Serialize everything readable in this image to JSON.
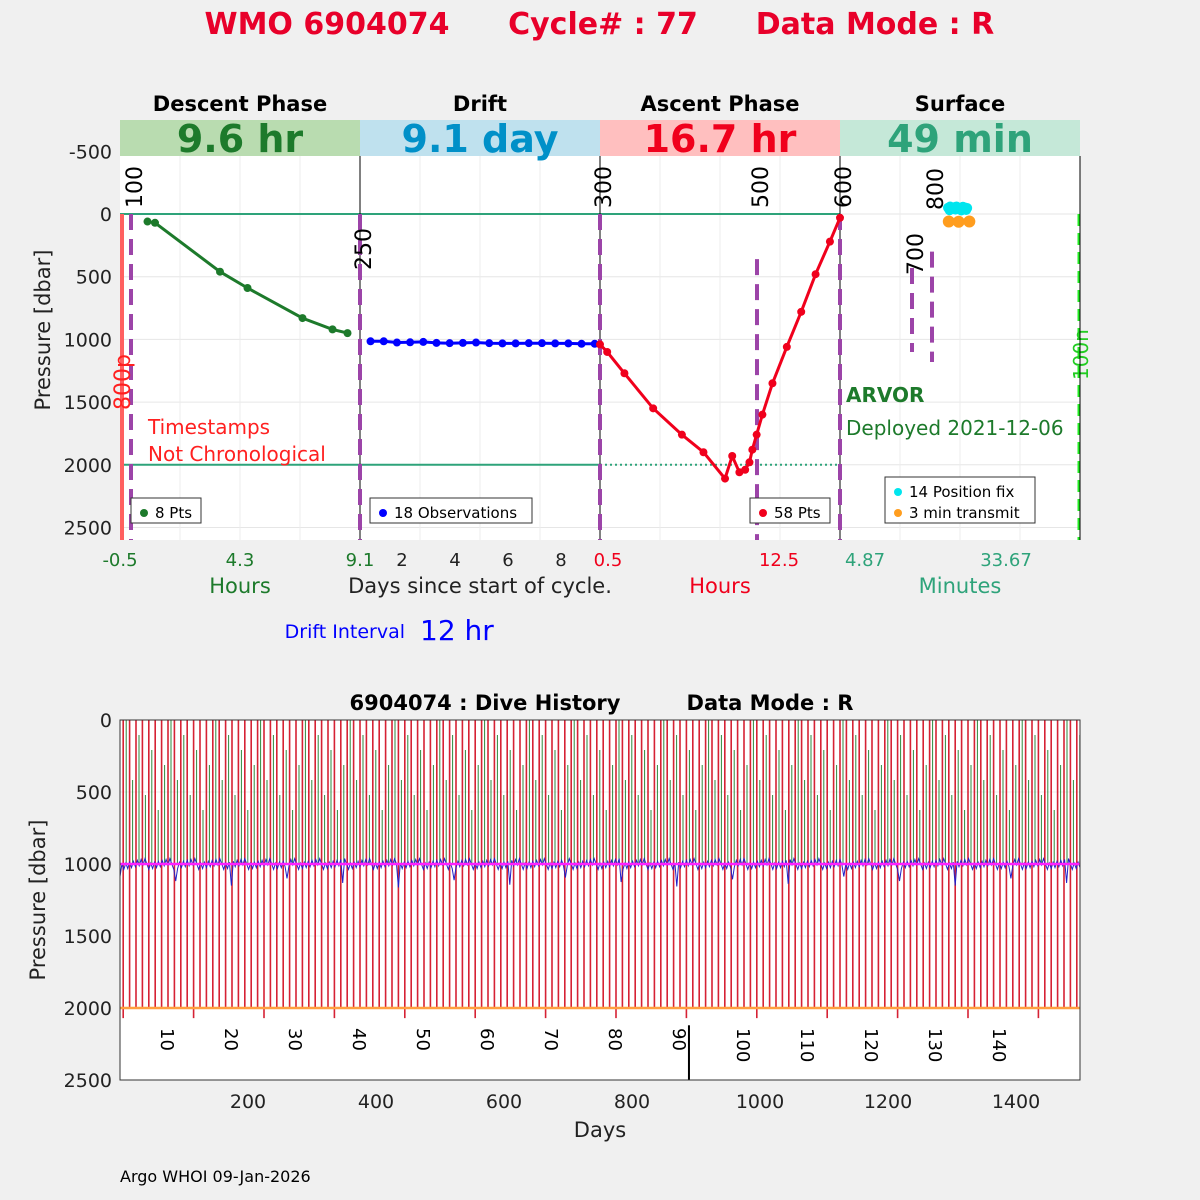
{
  "header": {
    "wmo": "WMO 6904074",
    "cycle": "Cycle# : 77",
    "data_mode": "Data Mode : R"
  },
  "colors": {
    "title_red": "#e8002a",
    "descent_green": "#1d7a2b",
    "drift_blue": "#0000ff",
    "ascent_red": "#f0001c",
    "surface_teal": "#2ea37a",
    "phase_purple": "#9c44a8",
    "band_descent": "#b9dcb0",
    "band_drift": "#bfe1ee",
    "band_ascent": "#ffbfbf",
    "band_surface": "#c5e8d8",
    "cyan_fix": "#00e5ee",
    "orange_tx": "#ff9d1e",
    "history_red": "#d62234",
    "history_green": "#2c8a3c",
    "history_magenta": "#ff20ff",
    "history_orange": "#ffa040"
  },
  "chart_data": [
    {
      "type": "line",
      "title": "WMO 6904074   Cycle# : 77   Data Mode : R",
      "ylabel": "Pressure [dbar]",
      "ylim": [
        2600,
        -750
      ],
      "yticks": [
        -500,
        0,
        500,
        1000,
        1500,
        2000,
        2500
      ],
      "panels": [
        {
          "name": "Descent Phase",
          "duration": "9.6 hr",
          "xlabel": "Hours",
          "xlim": [
            -0.5,
            9.1
          ],
          "xticks": [
            "-0.5",
            "4.3",
            "9.1"
          ],
          "marker_labels": [
            "100",
            "250"
          ],
          "series": [
            {
              "name": "descent",
              "x": [
                0.6,
                0.9,
                3.5,
                4.6,
                6.8,
                8.0,
                8.6
              ],
              "y": [
                60,
                70,
                460,
                590,
                830,
                920,
                950
              ]
            }
          ],
          "legend": "8 Pts",
          "annotations": [
            "800p",
            "Timestamps",
            "Not Chronological"
          ]
        },
        {
          "name": "Drift",
          "duration": "9.1 day",
          "xlabel": "Days since start of cycle.",
          "xlim": [
            0.5,
            9.6
          ],
          "xticks": [
            "2",
            "4",
            "6",
            "8"
          ],
          "series": [
            {
              "name": "drift",
              "x": [
                0.9,
                1.4,
                1.9,
                2.4,
                2.9,
                3.4,
                3.9,
                4.4,
                4.9,
                5.4,
                5.9,
                6.4,
                6.9,
                7.4,
                7.9,
                8.4,
                8.9,
                9.4
              ],
              "y": [
                1015,
                1015,
                1025,
                1023,
                1020,
                1028,
                1030,
                1028,
                1025,
                1030,
                1032,
                1032,
                1030,
                1030,
                1032,
                1032,
                1035,
                1035
              ]
            }
          ],
          "legend": "18 Observations"
        },
        {
          "name": "Ascent Phase",
          "duration": "16.7 hr",
          "xlabel": "Hours",
          "xlim": [
            0.5,
            17.2
          ],
          "xticks": [
            "0.5",
            "12.5"
          ],
          "marker_labels": [
            "300",
            "500",
            "600"
          ],
          "series": [
            {
              "name": "ascent",
              "x": [
                0.5,
                1.0,
                2.2,
                4.2,
                6.2,
                7.7,
                9.2,
                9.7,
                10.2,
                10.6,
                10.9,
                11.1,
                11.4,
                11.8,
                12.5,
                13.5,
                14.5,
                15.5,
                16.5,
                17.2
              ],
              "y": [
                1040,
                1100,
                1270,
                1550,
                1760,
                1900,
                2110,
                1930,
                2060,
                2040,
                1980,
                1880,
                1760,
                1600,
                1350,
                1060,
                780,
                480,
                220,
                30
              ]
            }
          ],
          "legend": "58 Pts",
          "dotted_reference": 2000
        },
        {
          "name": "Surface",
          "duration": "49 min",
          "xlabel": "Minutes",
          "xlim": [
            -25,
            65
          ],
          "xticks": [
            "4.87",
            "33.67"
          ],
          "marker_labels": [
            "700",
            "800",
            "100n"
          ],
          "series": [
            {
              "name": "14 Position fix",
              "x": [
                15.5,
                16.3,
                17.1,
                17.9,
                18.7,
                19.5,
                20.3,
                21.1,
                21.9,
                22.7,
                16.1,
                18.3,
                20.5,
                22.3
              ],
              "y": [
                -50,
                -60,
                -45,
                -55,
                -60,
                -50,
                -45,
                -58,
                -52,
                -48,
                -30,
                -35,
                -28,
                -32
              ]
            },
            {
              "name": "3 min transmit",
              "x": [
                15.8,
                19.5,
                23.5
              ],
              "y": [
                60,
                62,
                60
              ]
            }
          ],
          "annotations": [
            "ARVOR",
            "Deployed 2021-12-06"
          ]
        }
      ],
      "drift_interval_label": "Drift Interval",
      "drift_interval_value": "12 hr"
    },
    {
      "type": "line",
      "title": "6904074 : Dive History",
      "data_mode": "Data Mode : R",
      "xlabel": "Days",
      "ylabel": "Pressure [dbar]",
      "xlim": [
        0,
        1500
      ],
      "ylim": [
        2500,
        0
      ],
      "xticks": [
        200,
        400,
        600,
        800,
        1000,
        1200,
        1400
      ],
      "yticks": [
        0,
        500,
        1000,
        1500,
        2000,
        2500
      ],
      "cycle_labels": [
        10,
        20,
        30,
        40,
        50,
        60,
        70,
        80,
        90,
        100,
        110,
        120,
        130,
        140
      ],
      "cycle_count": 150,
      "cycle_interval_days": 10,
      "drift_pressure": 1000,
      "profile_pressure": 2000
    }
  ],
  "footer": {
    "credit": "Argo WHOI 09-Jan-2026"
  }
}
